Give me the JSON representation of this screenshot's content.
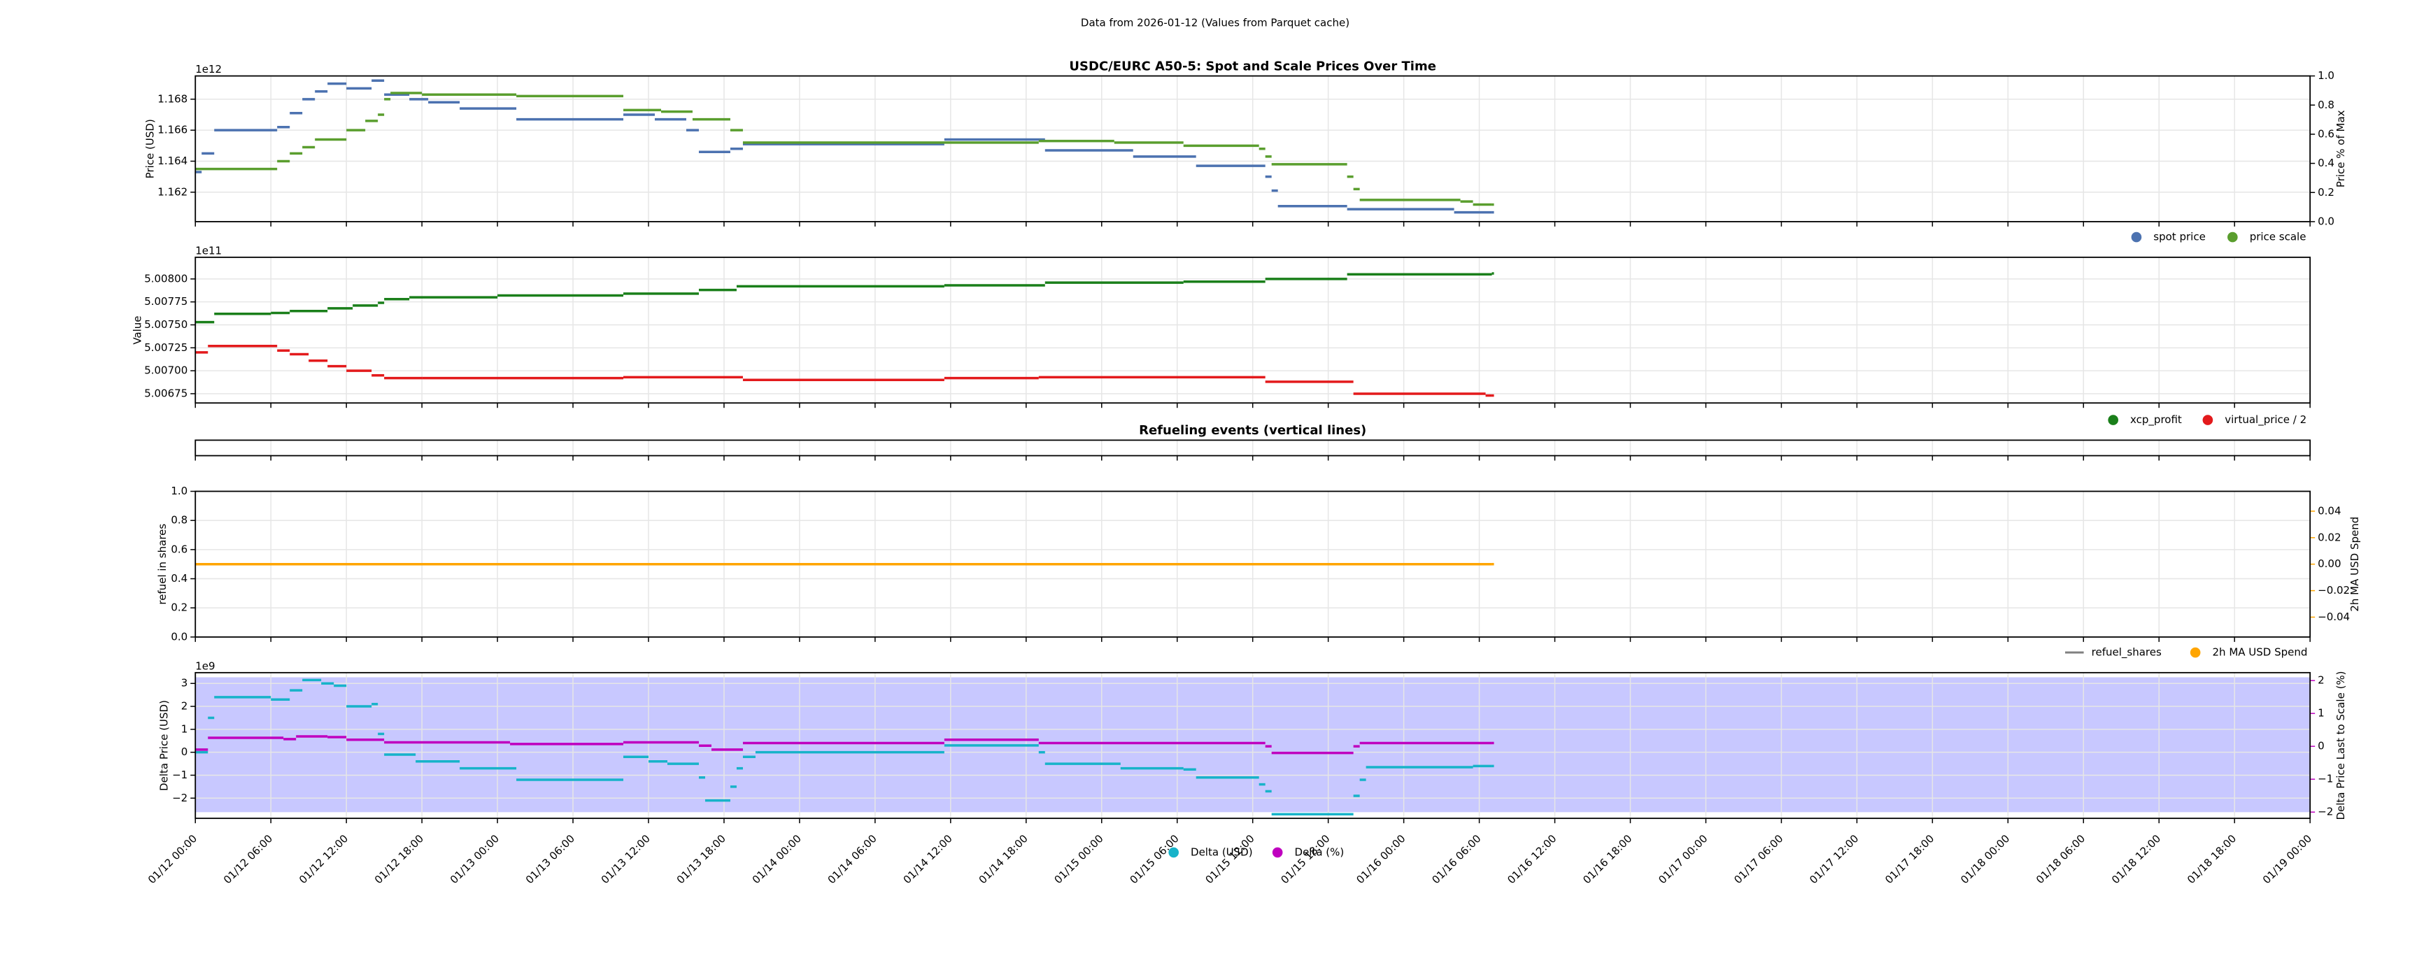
{
  "suptitle": "Data from 2026-01-12 (Values from Parquet cache)",
  "chart_data": [
    {
      "type": "line",
      "title": "USDC/EURC A50-5: Spot and Scale Prices Over Time",
      "ylabel": "Price (USD)",
      "offset_label": "1e12",
      "y2label": "Price % of Max",
      "ylim": [
        1.1601,
        1.1695
      ],
      "yticks": [
        1.162,
        1.164,
        1.166,
        1.168
      ],
      "y2lim": [
        0,
        1
      ],
      "y2ticks": [
        {
          "value": 0,
          "label": "0.0"
        },
        0.2,
        0.4,
        0.6,
        0.8,
        {
          "value": 1,
          "label": "1.0"
        }
      ],
      "grid": true,
      "series": [
        {
          "name": "spot price",
          "color": "#4c72b0",
          "marker": "dot",
          "x": [
            "01/12 00:00",
            "01/12 00:30",
            "01/12 01:30",
            "01/12 06:30",
            "01/12 07:30",
            "01/12 08:30",
            "01/12 09:30",
            "01/12 10:30",
            "01/12 12:00",
            "01/12 14:00",
            "01/12 15:00",
            "01/12 17:00",
            "01/12 18:30",
            "01/12 21:00",
            "01/13 01:30",
            "01/13 10:00",
            "01/13 12:30",
            "01/13 15:00",
            "01/13 16:00",
            "01/13 18:30",
            "01/13 19:30",
            "01/14 11:30",
            "01/14 19:30",
            "01/15 02:30",
            "01/15 07:30",
            "01/15 13:00",
            "01/15 13:30",
            "01/15 14:00",
            "01/15 19:30",
            "01/16 04:00",
            "01/16 07:00"
          ],
          "values": [
            1.1633,
            1.1645,
            1.166,
            1.1662,
            1.1671,
            1.168,
            1.1685,
            1.169,
            1.1687,
            1.1692,
            1.1683,
            1.168,
            1.1678,
            1.1674,
            1.1667,
            1.167,
            1.1667,
            1.166,
            1.1646,
            1.1648,
            1.1651,
            1.1654,
            1.1647,
            1.1643,
            1.1637,
            1.163,
            1.1621,
            1.1611,
            1.1609,
            1.1607,
            1.1607
          ]
        },
        {
          "name": "price scale",
          "color": "#5a9e2e",
          "marker": "dot",
          "x": [
            "01/12 00:00",
            "01/12 06:30",
            "01/12 07:30",
            "01/12 08:30",
            "01/12 09:30",
            "01/12 12:00",
            "01/12 13:30",
            "01/12 14:30",
            "01/12 15:00",
            "01/12 15:30",
            "01/12 18:00",
            "01/13 01:30",
            "01/13 10:00",
            "01/13 13:00",
            "01/13 15:30",
            "01/13 18:30",
            "01/13 19:30",
            "01/14 19:00",
            "01/15 01:00",
            "01/15 06:30",
            "01/15 12:30",
            "01/15 13:00",
            "01/15 13:30",
            "01/15 19:30",
            "01/15 20:00",
            "01/15 20:30",
            "01/16 04:30",
            "01/16 05:30",
            "01/16 07:00"
          ],
          "values": [
            1.1635,
            1.164,
            1.1645,
            1.1649,
            1.1654,
            1.166,
            1.1666,
            1.167,
            1.168,
            1.1684,
            1.1683,
            1.1682,
            1.1673,
            1.1672,
            1.1667,
            1.166,
            1.1652,
            1.1653,
            1.1652,
            1.165,
            1.1648,
            1.1643,
            1.1638,
            1.163,
            1.1622,
            1.1615,
            1.1614,
            1.1612,
            1.1612
          ]
        }
      ]
    },
    {
      "type": "line",
      "ylabel": "Value",
      "offset_label": "1e11",
      "ylim": [
        5.006649,
        5.008236
      ],
      "yticks": [
        5.00675,
        {
          "value": 5.007,
          "label": "5.00700"
        },
        5.00725,
        {
          "value": 5.0075,
          "label": "5.00750"
        },
        5.00775,
        {
          "value": 5.008,
          "label": "5.00800"
        }
      ],
      "grid": true,
      "series": [
        {
          "name": "xcp_profit",
          "color": "#1a7f1a",
          "marker": "dot",
          "x": [
            "01/12 00:00",
            "01/12 01:30",
            "01/12 06:00",
            "01/12 07:30",
            "01/12 10:30",
            "01/12 12:30",
            "01/12 14:30",
            "01/12 15:00",
            "01/12 17:00",
            "01/13 00:00",
            "01/13 10:00",
            "01/13 16:00",
            "01/13 19:00",
            "01/14 11:30",
            "01/14 19:30",
            "01/15 06:30",
            "01/15 13:00",
            "01/15 19:30",
            "01/16 07:00"
          ],
          "values": [
            5.00753,
            5.00762,
            5.00763,
            5.00765,
            5.00768,
            5.00771,
            5.00774,
            5.00778,
            5.0078,
            5.00782,
            5.00784,
            5.00788,
            5.00792,
            5.00793,
            5.00796,
            5.00797,
            5.008,
            5.00805,
            5.00806
          ]
        },
        {
          "name": "virtual_price / 2",
          "color": "#e31a1c",
          "marker": "dot",
          "x": [
            "01/12 00:00",
            "01/12 01:00",
            "01/12 06:30",
            "01/12 07:30",
            "01/12 09:00",
            "01/12 10:30",
            "01/12 12:00",
            "01/12 14:00",
            "01/12 15:00",
            "01/12 18:00",
            "01/13 10:00",
            "01/13 19:30",
            "01/14 11:30",
            "01/14 19:00",
            "01/15 13:00",
            "01/15 20:00",
            "01/16 06:30",
            "01/16 07:00"
          ],
          "values": [
            5.0072,
            5.00727,
            5.00722,
            5.00718,
            5.00711,
            5.00705,
            5.007,
            5.00695,
            5.00692,
            5.00692,
            5.00693,
            5.0069,
            5.00692,
            5.00693,
            5.00688,
            5.00675,
            5.00673,
            5.00673
          ]
        }
      ]
    },
    {
      "type": "events",
      "title": "Refueling events (vertical lines)",
      "grid": true
    },
    {
      "type": "line",
      "ylabel": "refuel in shares",
      "y2label": "2h MA USD Spend",
      "y2label_color": "#ffa500",
      "ylim": [
        0,
        1
      ],
      "yticks": [
        {
          "value": 0,
          "label": "0.0"
        },
        0.2,
        0.4,
        0.6,
        0.8,
        {
          "value": 1,
          "label": "1.0"
        }
      ],
      "y2lim": [
        -0.055,
        0.055
      ],
      "y2ticks": [
        {
          "value": -0.04,
          "label": "−0.04"
        },
        {
          "value": -0.02,
          "label": "−0.02"
        },
        {
          "value": 0,
          "label": "0.00"
        },
        0.02,
        0.04
      ],
      "grid": true,
      "series": [
        {
          "name": "refuel_shares",
          "color": "#808080",
          "marker": "line",
          "x": [],
          "values": []
        },
        {
          "name": "2h MA USD Spend",
          "color": "#ffa500",
          "marker": "dot",
          "axis": "y2",
          "x": [
            "01/12 00:00",
            "01/16 07:00"
          ],
          "values": [
            0,
            0
          ]
        }
      ]
    },
    {
      "type": "line",
      "ylabel": "Delta Price (USD)",
      "ylabel_color": "#17b3c9",
      "offset_label": "1e9",
      "y2label": "Delta Price Last to Scale (%)",
      "y2label_color": "#bf00bf",
      "xlim": [
        "01/12 00:00",
        "01/19 00:00"
      ],
      "xticks": [
        "01/12 00:00",
        "01/12 06:00",
        "01/12 12:00",
        "01/12 18:00",
        "01/13 00:00",
        "01/13 06:00",
        "01/13 12:00",
        "01/13 18:00",
        "01/14 00:00",
        "01/14 06:00",
        "01/14 12:00",
        "01/14 18:00",
        "01/15 00:00",
        "01/15 06:00",
        "01/15 12:00",
        "01/15 18:00",
        "01/16 00:00",
        "01/16 06:00",
        "01/16 12:00",
        "01/16 18:00",
        "01/17 00:00",
        "01/17 06:00",
        "01/17 12:00",
        "01/17 18:00",
        "01/18 00:00",
        "01/18 06:00",
        "01/18 12:00",
        "01/18 18:00",
        "01/19 00:00"
      ],
      "ylim": [
        -2.88,
        3.47
      ],
      "yticks": [
        {
          "value": -2,
          "label": "−2"
        },
        {
          "value": -1,
          "label": "−1"
        },
        0,
        1,
        2,
        3
      ],
      "y2lim": [
        -2.19,
        2.24
      ],
      "y2ticks": [
        {
          "value": -2,
          "label": "−2"
        },
        {
          "value": -1,
          "label": "−1"
        },
        0,
        1,
        2
      ],
      "grid": true,
      "shade_color": "#c8c8ff",
      "series": [
        {
          "name": "Delta (USD)",
          "color": "#17b3c9",
          "marker": "dot",
          "x": [
            "01/12 00:00",
            "01/12 01:00",
            "01/12 01:30",
            "01/12 06:00",
            "01/12 07:30",
            "01/12 08:30",
            "01/12 10:00",
            "01/12 11:00",
            "01/12 12:00",
            "01/12 14:00",
            "01/12 14:30",
            "01/12 15:00",
            "01/12 17:30",
            "01/12 21:00",
            "01/13 01:30",
            "01/13 10:00",
            "01/13 12:00",
            "01/13 13:30",
            "01/13 16:00",
            "01/13 16:30",
            "01/13 18:30",
            "01/13 19:00",
            "01/13 19:30",
            "01/13 20:30",
            "01/14 11:30",
            "01/14 19:00",
            "01/14 19:30",
            "01/15 01:30",
            "01/15 06:30",
            "01/15 07:30",
            "01/15 12:30",
            "01/15 13:00",
            "01/15 13:30",
            "01/15 20:00",
            "01/15 20:30",
            "01/15 21:00",
            "01/16 05:30",
            "01/16 07:00"
          ],
          "values": [
            0,
            1.5,
            2.4,
            2.3,
            2.7,
            3.15,
            3,
            2.9,
            2,
            2.1,
            0.8,
            -0.1,
            -0.4,
            -0.7,
            -1.2,
            -0.2,
            -0.4,
            -0.5,
            -1.1,
            -2.1,
            -1.5,
            -0.7,
            -0.2,
            0,
            0.3,
            0,
            -0.5,
            -0.7,
            -0.75,
            -1.1,
            -1.4,
            -1.7,
            -2.7,
            -1.9,
            -1.2,
            -0.65,
            -0.6,
            -0.6
          ]
        },
        {
          "name": "Delta (%)",
          "color": "#bf00bf",
          "marker": "dot",
          "axis": "y2",
          "x": [
            "01/12 00:00",
            "01/12 01:00",
            "01/12 07:00",
            "01/12 08:00",
            "01/12 10:30",
            "01/12 12:00",
            "01/12 15:00",
            "01/13 01:00",
            "01/13 10:00",
            "01/13 16:00",
            "01/13 17:00",
            "01/13 19:30",
            "01/14 11:30",
            "01/14 19:00",
            "01/15 13:00",
            "01/15 13:30",
            "01/15 20:00",
            "01/15 20:30",
            "01/16 07:00"
          ],
          "values": [
            -0.1,
            0.26,
            0.22,
            0.3,
            0.28,
            0.2,
            0.12,
            0.07,
            0.12,
            0.02,
            -0.1,
            0.1,
            0.2,
            0.1,
            0,
            -0.2,
            0,
            0.1,
            0.1
          ]
        }
      ]
    }
  ]
}
